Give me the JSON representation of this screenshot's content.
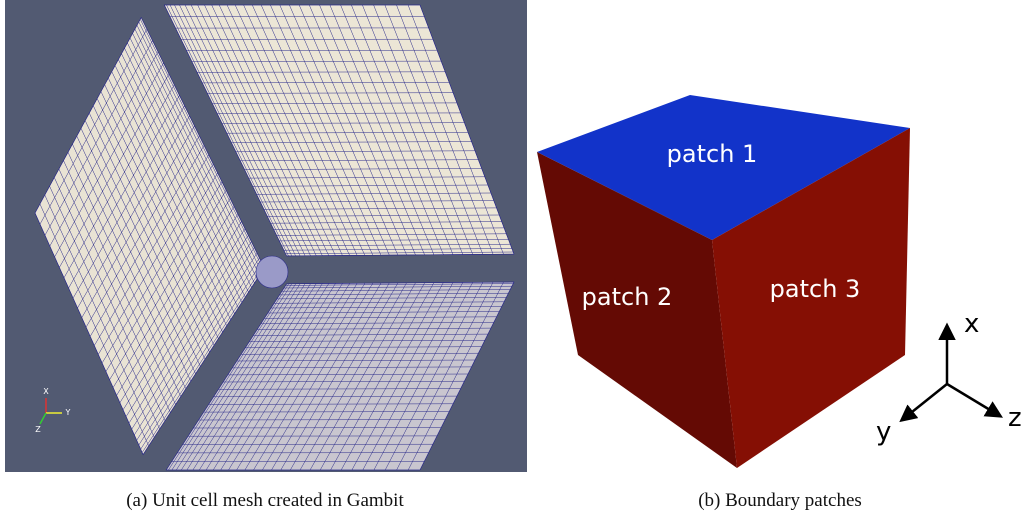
{
  "panel_a": {
    "triad": {
      "x": "X",
      "y": "Y",
      "z": "Z"
    },
    "caption": "(a) Unit cell mesh created in Gambit"
  },
  "panel_b": {
    "patches": [
      "patch 1",
      "patch 2",
      "patch 3"
    ],
    "axes": {
      "x": "x",
      "y": "y",
      "z": "z"
    },
    "caption": "(b) Boundary patches"
  }
}
